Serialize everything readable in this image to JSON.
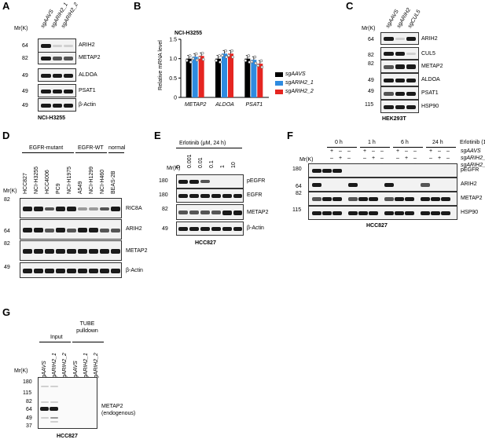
{
  "panels": {
    "A": {
      "letter": "A",
      "mr": "Mr(K)",
      "lanes": [
        "sgAAVS",
        "sgARIH2_1",
        "sgARIH2_2"
      ],
      "blots": [
        {
          "mw": "64",
          "label": "ARIH2"
        },
        {
          "mw": "82",
          "label": "METAP2"
        },
        {
          "mw": "49",
          "label": "ALDOA"
        },
        {
          "mw": "49",
          "label": "PSAT1"
        },
        {
          "mw": "49",
          "label": "β-Actin"
        }
      ],
      "cell_line": "NCI-H3255"
    },
    "B": {
      "letter": "B",
      "title": "NCI-H3255",
      "legend": [
        "sgAAVS",
        "sgARIH2_1",
        "sgARIH2_2"
      ]
    },
    "C": {
      "letter": "C",
      "mr": "Mr(K)",
      "lanes": [
        "sgAAVS",
        "sgARIH2",
        "sgCUL5"
      ],
      "blots": [
        {
          "mw": "64",
          "label": "ARIH2"
        },
        {
          "mw": "82",
          "label": "CUL5"
        },
        {
          "mw": "82",
          "label": "METAP2"
        },
        {
          "mw": "49",
          "label": "ALDOA"
        },
        {
          "mw": "49",
          "label": "PSAT1"
        },
        {
          "mw": "115",
          "label": "HSP90"
        }
      ],
      "cell_line": "HEK293T"
    },
    "D": {
      "letter": "D",
      "groups": [
        "EGFR-mutant",
        "EGFR-WT",
        "normal"
      ],
      "mr": "Mr(K)",
      "lanes": [
        "HCC827",
        "NCI-H3255",
        "HCC4006",
        "PC9",
        "NCI-H1975",
        "A549",
        "NCI-H1299",
        "NCI-H460",
        "BEAS-2B"
      ],
      "blots": [
        {
          "mw": "82",
          "label": "RIC8A"
        },
        {
          "mw": "64",
          "label": "ARIH2"
        },
        {
          "mw": "82",
          "label": "METAP2"
        },
        {
          "mw": "49",
          "label": "β-Actin"
        }
      ]
    },
    "E": {
      "letter": "E",
      "treatment": "Erlotinib (μM, 24 h)",
      "mr": "Mr(K)",
      "lanes": [
        "0",
        "0.001",
        "0.01",
        "0.1",
        "1",
        "10"
      ],
      "blots": [
        {
          "mw": "180",
          "label": "pEGFR"
        },
        {
          "mw": "180",
          "label": "EGFR"
        },
        {
          "mw": "82",
          "label": "METAP2"
        },
        {
          "mw": "49",
          "label": "β-Actin"
        }
      ],
      "cell_line": "HCC827"
    },
    "F": {
      "letter": "F",
      "timepoints": [
        "0 h",
        "1 h",
        "6 h",
        "24 h"
      ],
      "treatment": "Erlotinib (1 μM)",
      "rows": [
        "sgAAVS",
        "sgARIH2_1",
        "sgARIH2_2"
      ],
      "signs": [
        [
          "+",
          "–",
          "–"
        ],
        [
          "–",
          "+",
          "–"
        ],
        [
          "–",
          "–",
          "+"
        ]
      ],
      "mr": "Mr(K)",
      "blots": [
        {
          "mw": "180",
          "label": "pEGFR"
        },
        {
          "mw": "64",
          "label": "ARIH2"
        },
        {
          "mw": "82",
          "label": "METAP2"
        },
        {
          "mw": "115",
          "label": "HSP90"
        }
      ],
      "cell_line": "HCC827"
    },
    "G": {
      "letter": "G",
      "groups": [
        "Input",
        "TUBE pulldown"
      ],
      "lanes": [
        "sgAAVS",
        "sgARIH2_1",
        "sgARIH2_2",
        "sgAAVS",
        "sgARIH2_1",
        "sgARIH2_2"
      ],
      "mr": "Mr(K)",
      "mws": [
        "180",
        "115",
        "82",
        "64",
        "49",
        "37"
      ],
      "label_line1": "METAP2",
      "label_line2": "(endogenous)",
      "cell_line": "HCC827"
    }
  },
  "chart_data": {
    "type": "bar",
    "title": "NCI-H3255",
    "ylabel": "Relative mRNA level",
    "categories": [
      "METAP2",
      "ALDOA",
      "PSAT1"
    ],
    "ylim": [
      0,
      1.5
    ],
    "yticks": [
      "0",
      "0.5",
      "1.0",
      "1.5"
    ],
    "series": [
      {
        "name": "sgAAVS",
        "color": "#000000",
        "values": [
          1.0,
          1.0,
          1.0
        ]
      },
      {
        "name": "sgARIH2_1",
        "color": "#2e8be0",
        "values": [
          1.05,
          1.13,
          0.97
        ]
      },
      {
        "name": "sgARIH2_2",
        "color": "#e52521",
        "values": [
          1.07,
          1.13,
          0.87
        ]
      }
    ]
  }
}
